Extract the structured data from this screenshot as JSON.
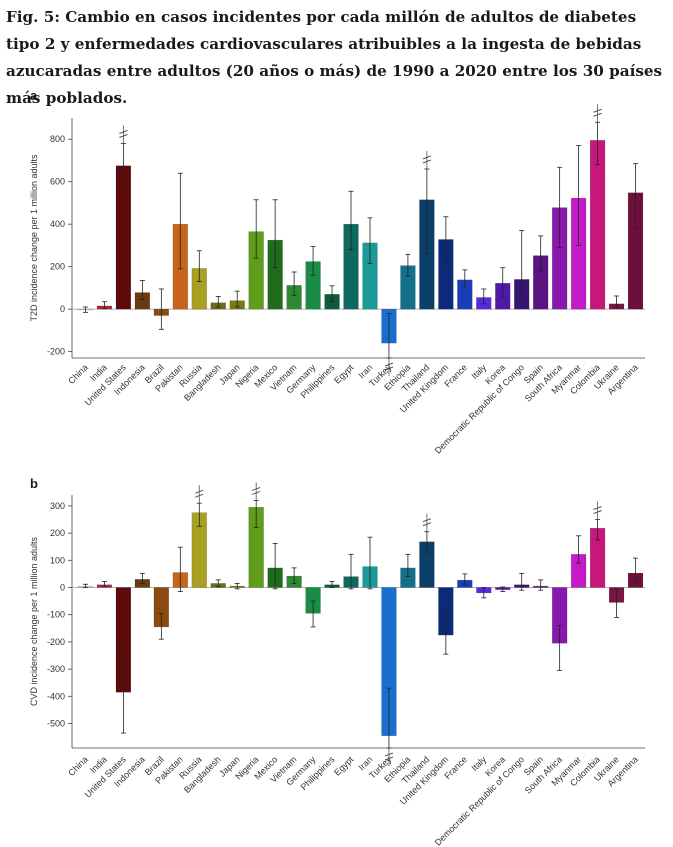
{
  "title": "Fig. 5: Cambio en casos incidentes por cada millón de adultos de diabetes tipo 2 y enfermedades cardiovasculares atribuibles a la ingesta de bebidas azucaradas entre adultos (20 años o más) de 1990 a 2020 entre los 30 países más poblados.",
  "chart_data": [
    {
      "panel": "a",
      "type": "bar",
      "ylabel": "T2D incidence change per 1 million adults",
      "ylim": [
        -230,
        900
      ],
      "yticks": [
        -200,
        0,
        200,
        400,
        600,
        800
      ],
      "categories": [
        "China",
        "India",
        "United States",
        "Indonesia",
        "Brazil",
        "Pakistan",
        "Russia",
        "Bangladesh",
        "Japan",
        "Nigeria",
        "Mexico",
        "Vietnam",
        "Germany",
        "Philippines",
        "Egypt",
        "Iran",
        "Turkey",
        "Ethiopia",
        "Thailand",
        "United Kingdom",
        "France",
        "Italy",
        "Korea",
        "Democratic Republic of Congo",
        "Spain",
        "South Africa",
        "Myanmar",
        "Colombia",
        "Ukraine",
        "Argentina"
      ],
      "values": [
        -3,
        15,
        675,
        78,
        -30,
        400,
        192,
        30,
        40,
        365,
        325,
        112,
        224,
        70,
        400,
        312,
        -160,
        205,
        515,
        328,
        138,
        55,
        122,
        140,
        252,
        478,
        523,
        795,
        25,
        548
      ],
      "err_low": [
        -15,
        3,
        620,
        45,
        -95,
        190,
        130,
        10,
        10,
        240,
        195,
        65,
        160,
        35,
        280,
        215,
        -230,
        155,
        260,
        220,
        105,
        25,
        55,
        45,
        180,
        290,
        300,
        680,
        8,
        380
      ],
      "err_high": [
        10,
        35,
        780,
        135,
        95,
        640,
        275,
        60,
        85,
        515,
        515,
        175,
        295,
        110,
        555,
        430,
        -20,
        258,
        660,
        435,
        185,
        95,
        195,
        370,
        345,
        668,
        770,
        880,
        62,
        685
      ],
      "breaks": [
        "United States",
        "Thailand",
        "Turkey",
        "Colombia"
      ]
    },
    {
      "panel": "b",
      "type": "bar",
      "ylabel": "CVD incidence change per 1 million adults",
      "ylim": [
        -590,
        340
      ],
      "yticks": [
        -500,
        -400,
        -300,
        -200,
        -100,
        0,
        100,
        200,
        300
      ],
      "categories": [
        "China",
        "India",
        "United States",
        "Indonesia",
        "Brazil",
        "Pakistan",
        "Russia",
        "Bangladesh",
        "Japan",
        "Nigeria",
        "Mexico",
        "Vietnam",
        "Germany",
        "Philippines",
        "Egypt",
        "Iran",
        "Turkey",
        "Ethiopia",
        "Thailand",
        "United Kingdom",
        "France",
        "Italy",
        "Korea",
        "Democratic Republic of Congo",
        "Spain",
        "South Africa",
        "Myanmar",
        "Colombia",
        "Ukraine",
        "Argentina"
      ],
      "values": [
        5,
        10,
        -385,
        30,
        -145,
        55,
        275,
        15,
        5,
        295,
        72,
        42,
        -95,
        10,
        40,
        77,
        -545,
        72,
        168,
        -175,
        27,
        -20,
        -8,
        10,
        5,
        -205,
        122,
        218,
        -55,
        53
      ],
      "err_low": [
        0,
        3,
        -535,
        15,
        -190,
        -15,
        225,
        3,
        -5,
        220,
        -5,
        15,
        -145,
        0,
        -5,
        -5,
        -590,
        40,
        130,
        -245,
        12,
        -38,
        -15,
        -10,
        -10,
        -305,
        90,
        175,
        -110,
        18
      ],
      "err_high": [
        12,
        22,
        -240,
        52,
        -95,
        148,
        310,
        28,
        15,
        320,
        162,
        72,
        -50,
        22,
        122,
        185,
        -370,
        122,
        205,
        -100,
        50,
        0,
        2,
        52,
        28,
        -140,
        190,
        250,
        -5,
        108
      ],
      "breaks": [
        "Russia",
        "Nigeria",
        "Thailand",
        "Turkey",
        "Colombia"
      ]
    }
  ],
  "colors": [
    "#d8d0cf",
    "#b0243f",
    "#5c0a0a",
    "#6b3a10",
    "#8a4a10",
    "#c8641a",
    "#a8a020",
    "#6c6a1c",
    "#7a7a10",
    "#5e9e1a",
    "#1f6c1c",
    "#2e8a30",
    "#1a8c46",
    "#0e5a3a",
    "#0e6a5e",
    "#1a9a98",
    "#1a6ed0",
    "#12708c",
    "#0c3e6a",
    "#0c2a78",
    "#1a3eb8",
    "#5a28e0",
    "#4e1aa8",
    "#381472",
    "#5c1480",
    "#8a18b0",
    "#c41ac8",
    "#c8177a",
    "#7a1440",
    "#6e0e3a"
  ]
}
